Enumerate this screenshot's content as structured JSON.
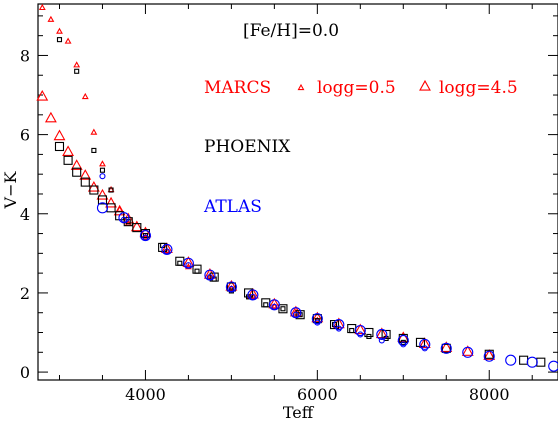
{
  "chart_data": {
    "type": "scatter",
    "title": "",
    "xlabel": "Teff",
    "ylabel": "V−K",
    "xlim": [
      2750,
      8800
    ],
    "ylim": [
      -0.2,
      9.3
    ],
    "xticks": [
      4000,
      6000,
      8000
    ],
    "yticks": [
      0,
      2,
      4,
      6,
      8
    ],
    "grid": false,
    "annotation": "[Fe/H]=0.0",
    "legend": {
      "marcs_label": "MARCS",
      "phoenix_label": "PHOENIX",
      "atlas_label": "ATLAS",
      "small_triangle_label": "logg=0.5",
      "large_triangle_label": "logg=4.5"
    },
    "colors": {
      "marcs": "#ff0000",
      "phoenix": "#000000",
      "atlas": "#0000ff"
    },
    "series": [
      {
        "name": "MARCS logg=0.5",
        "marker": "triangle-small",
        "color": "#ff0000",
        "x": [
          2800,
          2900,
          3000,
          3100,
          3200,
          3300,
          3400,
          3500,
          3600,
          3700,
          3800,
          4000,
          4250,
          4500,
          4750,
          5000,
          5250,
          5500,
          5750,
          6000
        ],
        "y": [
          9.2,
          8.9,
          8.6,
          8.35,
          7.75,
          6.95,
          6.05,
          5.25,
          4.6,
          4.1,
          3.75,
          3.4,
          3.05,
          2.65,
          2.4,
          2.1,
          1.9,
          1.65,
          1.5,
          1.3
        ]
      },
      {
        "name": "MARCS logg=4.5",
        "marker": "triangle-large",
        "color": "#ff0000",
        "x": [
          2800,
          2900,
          3000,
          3100,
          3200,
          3300,
          3400,
          3500,
          3600,
          3700,
          3800,
          3900,
          4000,
          4250,
          4500,
          4750,
          5000,
          5250,
          5500,
          5750,
          6000,
          6250,
          6500,
          6750,
          7000,
          7250,
          7500,
          7750,
          8000
        ],
        "y": [
          6.95,
          6.4,
          5.95,
          5.55,
          5.2,
          4.95,
          4.65,
          4.45,
          4.25,
          4.05,
          3.85,
          3.65,
          3.5,
          3.1,
          2.75,
          2.45,
          2.15,
          1.95,
          1.7,
          1.5,
          1.35,
          1.2,
          1.05,
          0.95,
          0.85,
          0.7,
          0.6,
          0.5,
          0.4
        ]
      },
      {
        "name": "PHOENIX logg=0.5",
        "marker": "square-small",
        "color": "#000000",
        "x": [
          3000,
          3200,
          3400,
          3500,
          3600,
          3800,
          4000,
          4200,
          4400,
          4600,
          4800,
          5000,
          5200,
          5400,
          5600,
          5800,
          6000,
          6200,
          6400,
          6600,
          6800,
          7000
        ],
        "y": [
          8.4,
          7.6,
          5.6,
          5.1,
          4.6,
          3.8,
          3.45,
          3.2,
          2.75,
          2.55,
          2.35,
          2.05,
          1.9,
          1.7,
          1.6,
          1.45,
          1.3,
          1.2,
          1.05,
          0.9,
          0.85,
          0.75
        ]
      },
      {
        "name": "PHOENIX logg=4.5",
        "marker": "square-large",
        "color": "#000000",
        "x": [
          3000,
          3100,
          3200,
          3300,
          3400,
          3500,
          3600,
          3700,
          3800,
          3900,
          4000,
          4200,
          4400,
          4600,
          4800,
          5000,
          5200,
          5400,
          5600,
          5800,
          6000,
          6200,
          6400,
          6600,
          6800,
          7000,
          7200,
          7500,
          8000,
          8400,
          8600
        ],
        "y": [
          5.7,
          5.35,
          5.05,
          4.8,
          4.6,
          4.35,
          4.15,
          3.95,
          3.8,
          3.65,
          3.5,
          3.15,
          2.8,
          2.6,
          2.4,
          2.15,
          2.0,
          1.75,
          1.6,
          1.45,
          1.35,
          1.2,
          1.1,
          1.0,
          0.95,
          0.85,
          0.75,
          0.6,
          0.45,
          0.3,
          0.25
        ]
      },
      {
        "name": "ATLAS logg=0.5",
        "marker": "circle-small",
        "color": "#0000ff",
        "x": [
          3500,
          3750,
          4000,
          4250,
          4500,
          4750,
          5000,
          5250,
          5500,
          5750,
          6000,
          6250,
          6500,
          6750,
          7000,
          7250
        ],
        "y": [
          4.95,
          3.85,
          3.4,
          3.05,
          2.7,
          2.4,
          2.1,
          1.9,
          1.65,
          1.45,
          1.25,
          1.1,
          0.95,
          0.8,
          0.7,
          0.6
        ]
      },
      {
        "name": "ATLAS logg=4.5",
        "marker": "circle-large",
        "color": "#0000ff",
        "x": [
          3500,
          3750,
          4000,
          4250,
          4500,
          4750,
          5000,
          5250,
          5500,
          5750,
          6000,
          6250,
          6500,
          6750,
          7000,
          7250,
          7500,
          7750,
          8000,
          8250,
          8500,
          8750
        ],
        "y": [
          4.15,
          3.9,
          3.45,
          3.1,
          2.75,
          2.45,
          2.15,
          1.95,
          1.7,
          1.5,
          1.35,
          1.2,
          1.05,
          0.95,
          0.8,
          0.7,
          0.6,
          0.5,
          0.4,
          0.3,
          0.25,
          0.15
        ]
      }
    ]
  }
}
